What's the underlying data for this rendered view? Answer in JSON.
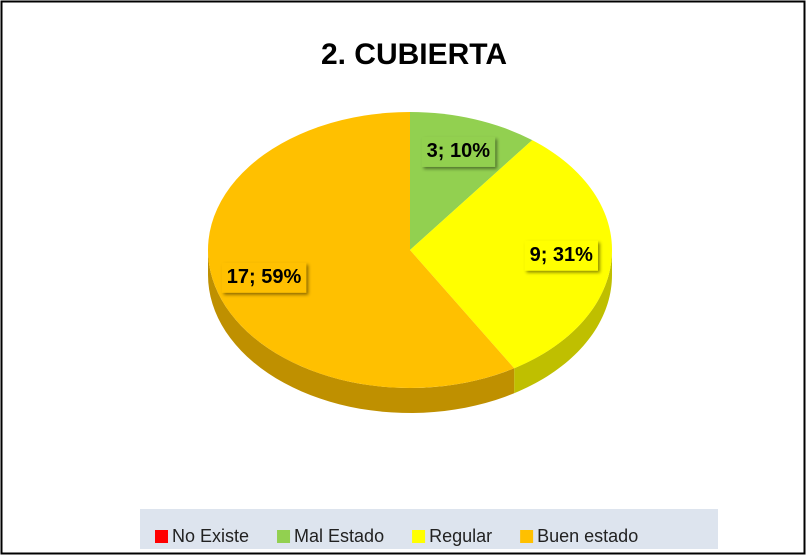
{
  "chart_data": {
    "type": "pie",
    "title": "2. CUBIERTA",
    "categories": [
      "No Existe",
      "Mal Estado",
      "Regular",
      "Buen estado"
    ],
    "values": [
      0,
      3,
      9,
      17
    ],
    "value_labels": [
      null,
      "3; 10%",
      "9; 31%",
      "17; 59%"
    ],
    "colors": [
      "#ff0000",
      "#92d050",
      "#ffff00",
      "#ffc000"
    ],
    "legend": "bottom"
  }
}
